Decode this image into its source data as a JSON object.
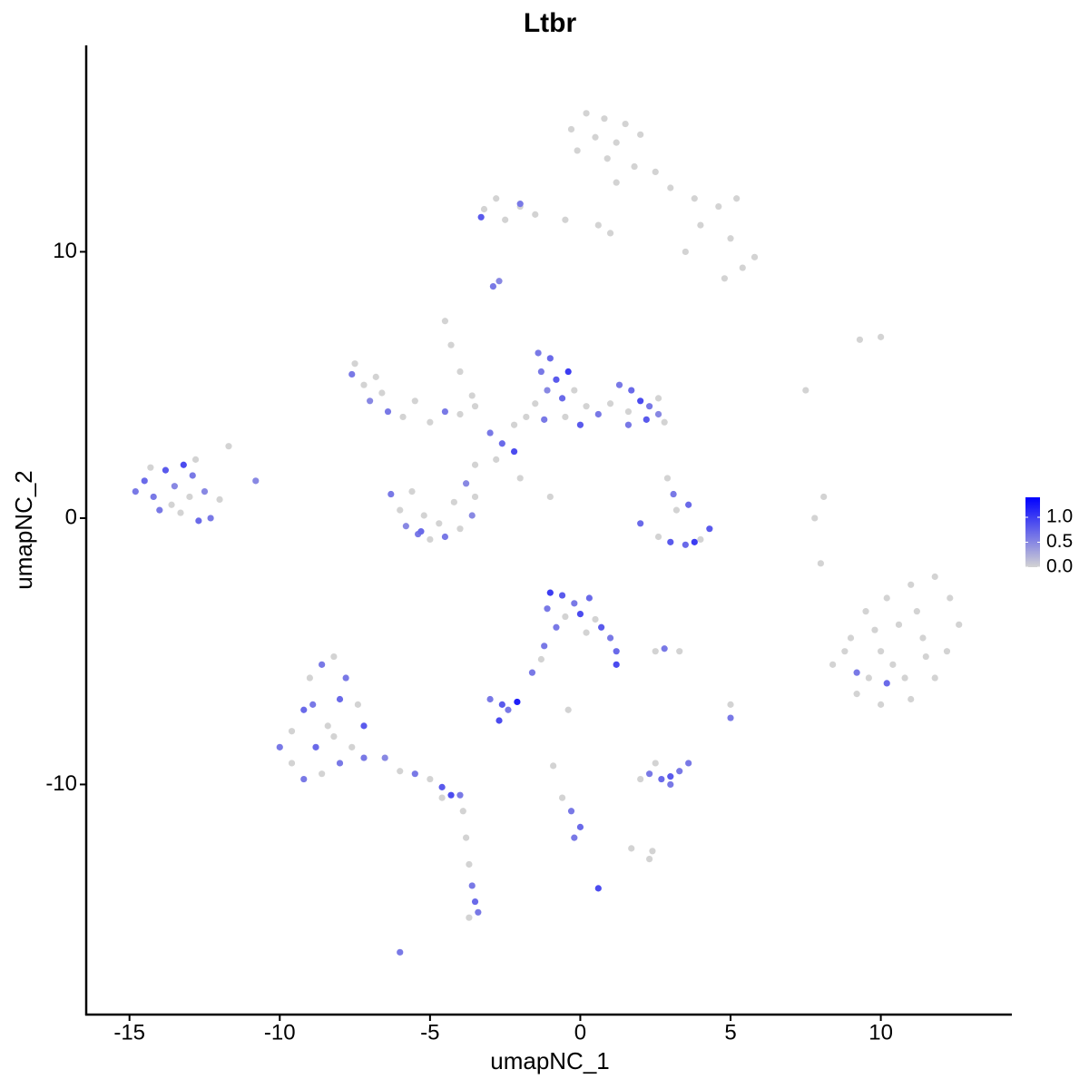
{
  "chart_data": {
    "type": "scatter",
    "title": "Ltbr",
    "x_label": "umapNC_1",
    "y_label": "umapNC_2",
    "xlim": [
      -16.44,
      14.36
    ],
    "ylim": [
      -18.64,
      17.75
    ],
    "xticks": [
      -15,
      -10,
      -5,
      0,
      5,
      10
    ],
    "yticks": [
      -10,
      0,
      10
    ],
    "color_low": "#d3d3d3",
    "color_high": "#0000ff",
    "clim": [
      0,
      1.4
    ],
    "cticks": [
      {
        "value": 0,
        "label": "0.0"
      },
      0.5,
      {
        "value": 1,
        "label": "1.0"
      }
    ],
    "x": [
      0.2,
      0.8,
      1.5,
      -0.3,
      0.5,
      1.2,
      2.0,
      -0.1,
      0.9,
      1.8,
      2.5,
      1.2,
      3.0,
      3.8,
      4.6,
      5.2,
      4.0,
      5.0,
      5.8,
      5.4,
      4.8,
      3.5,
      0.6,
      -0.5,
      -1.5,
      1.0,
      -2.8,
      -3.2,
      -2.5,
      -2.0,
      -3.3,
      -2.0,
      -2.9,
      -2.7,
      -1.4,
      -1.0,
      -1.3,
      -0.8,
      -0.4,
      -1.1,
      -0.6,
      -1.5,
      -0.2,
      0.2,
      0.6,
      -0.5,
      0.0,
      -1.8,
      -2.2,
      -1.2,
      1.3,
      1.7,
      2.0,
      2.3,
      2.6,
      1.6,
      2.8,
      1.6,
      1.0,
      2.2,
      2.6,
      -2.2,
      -2.6,
      -3.0,
      -2.8,
      -3.5,
      -2.0,
      -1.0,
      -7.5,
      -7.6,
      -7.2,
      -6.8,
      -7.0,
      -6.6,
      -6.4,
      -5.9,
      -5.0,
      -4.5,
      -4.0,
      -3.5,
      -5.5,
      -4.5,
      -4.3,
      -4.0,
      -3.6,
      -14.8,
      -14.5,
      -14.2,
      -13.8,
      -13.5,
      -13.2,
      -12.9,
      -13.6,
      -14.0,
      -13.0,
      -12.5,
      -12.3,
      -12.8,
      -11.7,
      -14.3,
      -12.0,
      -10.8,
      -12.7,
      -13.3,
      -6.3,
      -6.0,
      -5.8,
      -5.4,
      -5.0,
      -4.5,
      -4.0,
      -3.6,
      -3.5,
      -4.7,
      -5.2,
      -5.6,
      -3.8,
      -4.2,
      -5.3,
      2.0,
      2.6,
      3.0,
      3.5,
      4.0,
      4.3,
      3.8,
      3.1,
      3.6,
      2.9,
      3.2,
      9.0,
      9.5,
      10.2,
      11.0,
      11.8,
      12.3,
      12.6,
      12.2,
      11.8,
      11.0,
      10.0,
      9.2,
      8.4,
      8.8,
      9.8,
      10.6,
      11.4,
      10.4,
      9.6,
      11.2,
      10.0,
      10.8,
      9.2,
      10.2,
      11.5,
      10.0,
      9.3,
      7.5,
      8.1,
      7.8,
      8.0,
      5.0,
      5.0,
      -1.0,
      -0.6,
      -0.2,
      0.3,
      -1.1,
      -0.5,
      0.0,
      0.5,
      -0.8,
      0.2,
      0.7,
      1.0,
      1.2,
      1.2,
      -1.2,
      -1.6,
      -1.3,
      2.8,
      2.5,
      -3.0,
      -2.6,
      -2.1,
      -2.4,
      -2.7,
      -0.4,
      -10.0,
      -9.6,
      -9.2,
      -9.0,
      -8.6,
      -8.2,
      -7.8,
      -7.4,
      -7.2,
      -7.6,
      -8.0,
      -8.6,
      -9.2,
      -9.6,
      -8.8,
      -8.4,
      -8.9,
      -8.0,
      -8.2,
      -7.2,
      -6.5,
      -6.0,
      -5.5,
      -5.0,
      -4.6,
      -4.3,
      -4.0,
      -4.6,
      -3.9,
      -3.8,
      -3.7,
      -3.6,
      -3.5,
      -3.7,
      -3.4,
      -6.0,
      2.3,
      2.7,
      3.0,
      3.3,
      2.0,
      3.6,
      2.5,
      3.0,
      -0.9,
      -0.6,
      -0.3,
      0.0,
      -0.2,
      1.7,
      2.4,
      2.3,
      0.6,
      3.3
    ],
    "y": [
      15.2,
      15.0,
      14.8,
      14.6,
      14.3,
      14.1,
      14.4,
      13.8,
      13.5,
      13.2,
      13.0,
      12.6,
      12.4,
      12.0,
      11.7,
      12.0,
      11.0,
      10.5,
      9.8,
      9.4,
      9.0,
      10.0,
      11.0,
      11.2,
      11.4,
      10.7,
      12.0,
      11.6,
      11.2,
      11.7,
      11.3,
      11.8,
      8.7,
      8.9,
      6.2,
      6.0,
      5.5,
      5.2,
      5.5,
      4.8,
      4.5,
      4.3,
      4.8,
      4.2,
      3.9,
      3.8,
      3.5,
      3.8,
      3.5,
      3.7,
      5.0,
      4.8,
      4.4,
      4.2,
      3.9,
      4.0,
      3.6,
      3.5,
      4.3,
      3.7,
      4.5,
      2.5,
      2.8,
      3.2,
      2.2,
      2.0,
      1.5,
      0.8,
      5.8,
      5.4,
      5.0,
      5.3,
      4.4,
      4.7,
      4.0,
      3.8,
      3.6,
      4.0,
      3.9,
      4.2,
      4.4,
      7.4,
      6.5,
      5.5,
      4.6,
      1.0,
      1.4,
      0.8,
      1.8,
      1.2,
      2.0,
      1.6,
      0.5,
      0.3,
      0.8,
      1.0,
      0.0,
      2.2,
      2.7,
      1.9,
      0.7,
      1.4,
      -0.1,
      0.2,
      0.9,
      0.3,
      -0.3,
      -0.6,
      -0.8,
      -0.7,
      -0.4,
      0.1,
      0.8,
      -0.2,
      0.1,
      1.0,
      1.3,
      0.6,
      -0.5,
      -0.2,
      -0.7,
      -0.9,
      -1.0,
      -0.8,
      -0.4,
      -0.9,
      0.9,
      0.5,
      1.5,
      0.3,
      -4.5,
      -3.5,
      -3.0,
      -2.5,
      -2.2,
      -3.0,
      -4.0,
      -5.0,
      -6.0,
      -6.8,
      -7.0,
      -6.6,
      -5.5,
      -5.0,
      -4.2,
      -4.0,
      -4.5,
      -5.5,
      -6.0,
      -3.5,
      -5.0,
      -6.0,
      -5.8,
      -6.2,
      -5.2,
      6.8,
      6.7,
      4.8,
      0.8,
      0.0,
      -1.7,
      -7.5,
      -7.0,
      -2.8,
      -2.9,
      -3.2,
      -3.0,
      -3.4,
      -3.7,
      -3.6,
      -3.8,
      -4.1,
      -4.3,
      -4.1,
      -4.5,
      -5.0,
      -5.5,
      -4.8,
      -5.8,
      -5.3,
      -4.9,
      -5.0,
      -6.8,
      -7.0,
      -6.9,
      -7.2,
      -7.6,
      -7.2,
      -8.6,
      -8.0,
      -7.2,
      -6.0,
      -5.5,
      -5.2,
      -6.0,
      -7.0,
      -7.8,
      -8.6,
      -9.2,
      -9.6,
      -9.8,
      -9.2,
      -8.6,
      -7.8,
      -7.0,
      -6.8,
      -8.2,
      -9.0,
      -9.0,
      -9.5,
      -9.6,
      -9.8,
      -10.1,
      -10.4,
      -10.4,
      -10.5,
      -11.0,
      -12.0,
      -13.0,
      -13.8,
      -14.4,
      -15.0,
      -14.8,
      -16.3,
      -9.6,
      -9.8,
      -9.7,
      -9.5,
      -9.8,
      -9.2,
      -9.2,
      -10.0,
      -9.3,
      -10.5,
      -11.0,
      -11.6,
      -12.0,
      -12.4,
      -12.5,
      -12.8,
      -13.9,
      -5.0
    ],
    "values": [
      0,
      0,
      0,
      0,
      0,
      0,
      0,
      0,
      0,
      0,
      0,
      0,
      0,
      0,
      0,
      0,
      0,
      0,
      0,
      0,
      0,
      0,
      0,
      0,
      0,
      0,
      0,
      0,
      0,
      0,
      0.8,
      0.6,
      0.6,
      0.5,
      0.6,
      0.7,
      0.6,
      0.8,
      1.0,
      0.5,
      0.7,
      0,
      0,
      0,
      0.6,
      0,
      0.8,
      0,
      0,
      0.6,
      0.6,
      0.7,
      0.9,
      0.6,
      0.5,
      0,
      0,
      0.6,
      0,
      0.8,
      0,
      0.9,
      0.7,
      0.6,
      0,
      0,
      0,
      0,
      0,
      0.6,
      0,
      0,
      0.5,
      0,
      0.6,
      0,
      0,
      0.6,
      0,
      0,
      0,
      0,
      0,
      0,
      0,
      0.6,
      0.7,
      0.6,
      0.8,
      0.5,
      0.9,
      0.6,
      0,
      0.6,
      0,
      0.5,
      0.6,
      0,
      0,
      0,
      0,
      0.5,
      0.7,
      0,
      0.6,
      0,
      0.5,
      0.6,
      0,
      0.6,
      0,
      0.5,
      0,
      0,
      0,
      0,
      0.5,
      0,
      0.7,
      0.7,
      0,
      0.8,
      0.7,
      0,
      0.8,
      1.0,
      0.6,
      0.7,
      0,
      0,
      0,
      0,
      0,
      0,
      0,
      0,
      0,
      0,
      0,
      0,
      0,
      0,
      0,
      0,
      0,
      0,
      0,
      0,
      0,
      0,
      0,
      0,
      0.6,
      0.7,
      0,
      0,
      0,
      0,
      0,
      0,
      0,
      0.6,
      0,
      1.0,
      0.8,
      0.6,
      0.7,
      0.6,
      0,
      0.9,
      0,
      0.6,
      0,
      0.8,
      0.6,
      0.7,
      0.9,
      0.6,
      0.6,
      0,
      0.6,
      0,
      0.6,
      0.8,
      1.2,
      0.6,
      0.9,
      0,
      0.6,
      0,
      0.7,
      0,
      0.6,
      0,
      0.6,
      0,
      0.8,
      0,
      0.6,
      0,
      0.6,
      0,
      0.7,
      0,
      0.6,
      0.7,
      0,
      0.6,
      0.5,
      0,
      0.6,
      0,
      0.8,
      0.9,
      0.6,
      0,
      0,
      0,
      0,
      0.6,
      0.7,
      0,
      0.6,
      0.6,
      0.6,
      0.7,
      0.8,
      0.6,
      0,
      0.6,
      0,
      0.6,
      0,
      0,
      0.6,
      0.7,
      0.6,
      0,
      0,
      0,
      0.9,
      0
    ]
  }
}
